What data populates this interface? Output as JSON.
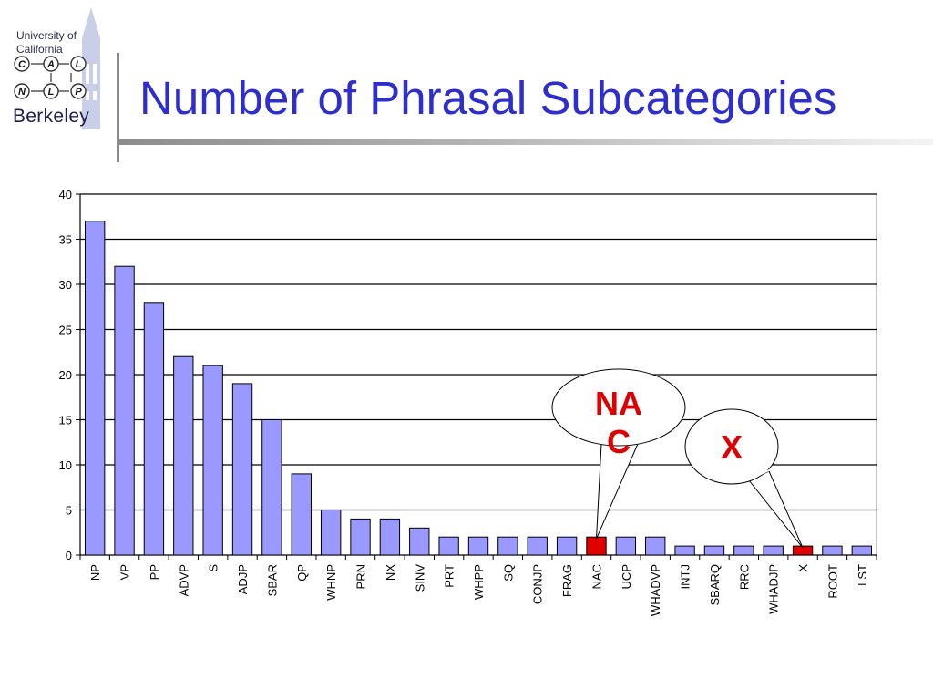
{
  "logo": {
    "line1": "University of",
    "line2": "California",
    "letters_top": [
      "C",
      "A",
      "L"
    ],
    "letters_bottom": [
      "N",
      "L",
      "P"
    ],
    "wordmark": "Berkeley"
  },
  "title": "Number of Phrasal Subcategories",
  "colors": {
    "bar": "#9999ff",
    "highlight_bar": "#e00000",
    "title": "#2e2ecf",
    "callout_text": "#e00000"
  },
  "chart_data": {
    "type": "bar",
    "title": "",
    "xlabel": "",
    "ylabel": "",
    "ylim": [
      0,
      40
    ],
    "yticks": [
      0,
      5,
      10,
      15,
      20,
      25,
      30,
      35,
      40
    ],
    "grid": true,
    "categories": [
      "NP",
      "VP",
      "PP",
      "ADVP",
      "S",
      "ADJP",
      "SBAR",
      "QP",
      "WHNP",
      "PRN",
      "NX",
      "SINV",
      "PRT",
      "WHPP",
      "SQ",
      "CONJP",
      "FRAG",
      "NAC",
      "UCP",
      "WHADVP",
      "INTJ",
      "SBARQ",
      "RRC",
      "WHADJP",
      "X",
      "ROOT",
      "LST"
    ],
    "values": [
      37,
      32,
      28,
      22,
      21,
      19,
      15,
      9,
      5,
      4,
      4,
      3,
      2,
      2,
      2,
      2,
      2,
      2,
      2,
      2,
      1,
      1,
      1,
      1,
      1,
      1,
      1
    ],
    "highlighted": [
      "NAC",
      "X"
    ],
    "annotations": [
      {
        "text_line1": "NA",
        "text_line2": "C",
        "points_to": "NAC"
      },
      {
        "text_line1": "X",
        "text_line2": "",
        "points_to": "X"
      }
    ]
  }
}
